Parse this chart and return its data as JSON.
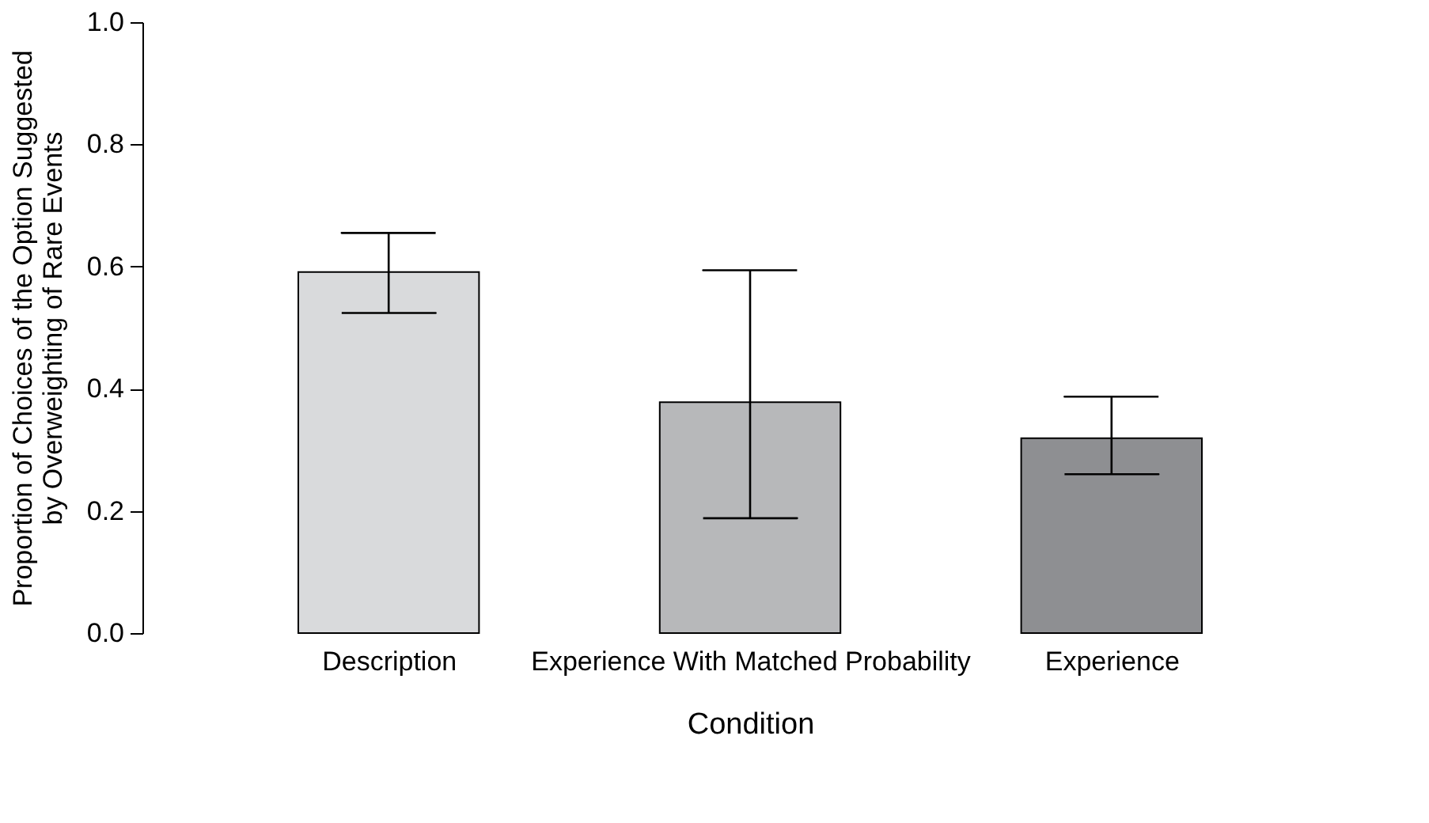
{
  "chart_data": {
    "type": "bar",
    "xlabel": "Condition",
    "ylabel": "Proportion of Choices of the Option Suggested\nby Overweighting of Rare Events",
    "categories": [
      "Description",
      "Experience With Matched Probability",
      "Experience"
    ],
    "values": [
      0.591,
      0.378,
      0.319
    ],
    "colors": [
      "#d9dadc",
      "#b7b8ba",
      "#8e8f92"
    ],
    "errors": [
      [
        0.524,
        0.655
      ],
      [
        0.188,
        0.594
      ],
      [
        0.26,
        0.387
      ]
    ],
    "ylim": [
      0,
      1
    ],
    "yticks": [
      {
        "value": 0,
        "label": "0.0"
      },
      {
        "value": 0.2,
        "label": "0.2"
      },
      {
        "value": 0.4,
        "label": "0.4"
      },
      {
        "value": 0.6,
        "label": "0.6"
      },
      {
        "value": 0.8,
        "label": "0.8"
      },
      {
        "value": 1,
        "label": "1.0"
      }
    ],
    "grid": false,
    "legend": false
  }
}
